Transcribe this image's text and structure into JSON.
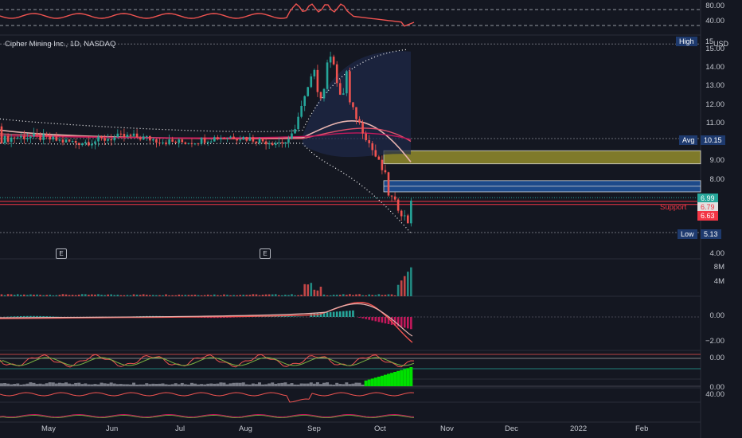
{
  "symbol": {
    "title": "Cipher Mining Inc., 1D, NASDAQ"
  },
  "currency": "USD",
  "labels": {
    "high": "High",
    "high_value": "15",
    "avg": "Avg",
    "avg_value": "10.15",
    "low": "Low",
    "low_value": "5.13",
    "support": "Support",
    "price_last": "6.99",
    "price_mid": "6.79",
    "price_low": "6.63",
    "earnings_marker": "E"
  },
  "price_axis": [
    "15.00",
    "14.00",
    "13.00",
    "12.00",
    "11.00",
    "9.00",
    "8.00",
    "4.00"
  ],
  "rsi_axis": [
    "80.00",
    "40.00"
  ],
  "volume_axis": [
    "8M",
    "4M"
  ],
  "macd_axis": [
    "0.00",
    "−2.00"
  ],
  "osc_axis": [
    "0.00"
  ],
  "hist_axis": [
    "0.00"
  ],
  "bottom_axis": [
    "40.00"
  ],
  "months": [
    "May",
    "Jun",
    "Jul",
    "Aug",
    "Sep",
    "Oct",
    "Nov",
    "Dec",
    "2022",
    "Feb"
  ],
  "colors": {
    "background": "#141721",
    "up": "#26a69a",
    "down": "#ef5350",
    "support": "#f23645",
    "avg_badge": "#1e3a6e",
    "yellow_zone": "#7f7a2a",
    "blue_zone": "#1d4a8a",
    "volume_up": "#26a69a",
    "hist_green": "#00e000"
  },
  "chart_data": {
    "type": "candlestick",
    "title": "Cipher Mining Inc., 1D, NASDAQ",
    "y_range": [
      4.0,
      15.3
    ],
    "high": 15,
    "avg": 10.15,
    "low": 5.13,
    "support_levels": [
      6.79,
      6.63
    ],
    "last_price": 6.99,
    "zones": [
      {
        "kind": "resistance",
        "from": 8.8,
        "to": 9.5,
        "color": "#7f7a2a"
      },
      {
        "kind": "demand",
        "from": 7.3,
        "to": 7.9,
        "color": "#1d4a8a"
      }
    ],
    "x_months": [
      "May",
      "Jun",
      "Jul",
      "Aug",
      "Sep",
      "Oct",
      "Nov",
      "Dec",
      "2022",
      "Feb"
    ]
  }
}
